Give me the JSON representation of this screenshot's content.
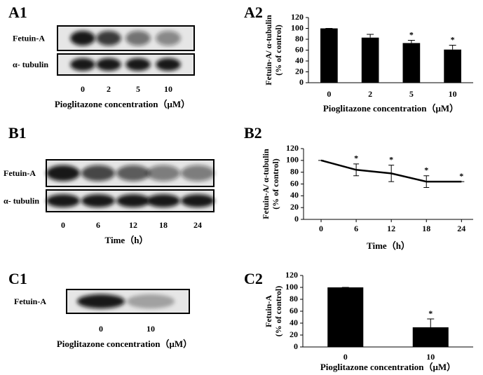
{
  "panel_labels": [
    "A1",
    "A2",
    "B1",
    "B2",
    "C1",
    "C2"
  ],
  "blots": [
    {
      "rows": [
        "Fetuin-A",
        "α- tubulin"
      ],
      "lanes": [
        "0",
        "2",
        "5",
        "10"
      ],
      "xlabel": "Pioglitazone concentration（μM）"
    },
    {
      "rows": [
        "Fetuin-A",
        "α- tubulin"
      ],
      "lanes": [
        "0",
        "6",
        "12",
        "18",
        "24"
      ],
      "xlabel": "Time（h）"
    },
    {
      "rows": [
        "Fetuin-A"
      ],
      "lanes": [
        "0",
        "10"
      ],
      "xlabel": "Pioglitazone concentration（μM）"
    }
  ],
  "chart_data": [
    {
      "type": "bar",
      "ylabel": [
        "Fetuin-A/ α-tubulin",
        "(% of control)"
      ],
      "xlabel": "Pioglitazone concentration（μM）",
      "categories": [
        "0",
        "2",
        "5",
        "10"
      ],
      "values": [
        100,
        83,
        73,
        61
      ],
      "errors": [
        0,
        6,
        5,
        8
      ],
      "significance": [
        null,
        null,
        "*",
        "*"
      ],
      "color": "#000000",
      "ylim": [
        0,
        120
      ],
      "yticks": [
        0,
        20,
        40,
        60,
        80,
        100,
        120
      ]
    },
    {
      "type": "line",
      "ylabel": [
        "Fetuin-A/ α-tubulin",
        "(% of control)"
      ],
      "xlabel": "Time（h）",
      "x": [
        0,
        6,
        12,
        18,
        24
      ],
      "values": [
        100,
        84,
        78,
        64,
        64
      ],
      "errors": [
        0,
        10,
        14,
        10,
        0
      ],
      "significance": [
        null,
        "*",
        "*",
        "*",
        "*"
      ],
      "color": "#000000",
      "xlim": [
        -3,
        26
      ],
      "xticks": [
        0,
        6,
        12,
        18,
        24
      ],
      "ylim": [
        0,
        120
      ],
      "yticks": [
        0,
        20,
        40,
        60,
        80,
        100,
        120
      ]
    },
    {
      "type": "bar",
      "ylabel": [
        "Fetuin-A",
        "(% of control)"
      ],
      "xlabel": "Pioglitazone concentration（μM）",
      "categories": [
        "0",
        "10"
      ],
      "values": [
        100,
        33
      ],
      "errors": [
        0,
        14
      ],
      "significance": [
        null,
        "*"
      ],
      "color": "#000000",
      "ylim": [
        0,
        120
      ],
      "yticks": [
        0,
        20,
        40,
        60,
        80,
        100,
        120
      ]
    }
  ]
}
